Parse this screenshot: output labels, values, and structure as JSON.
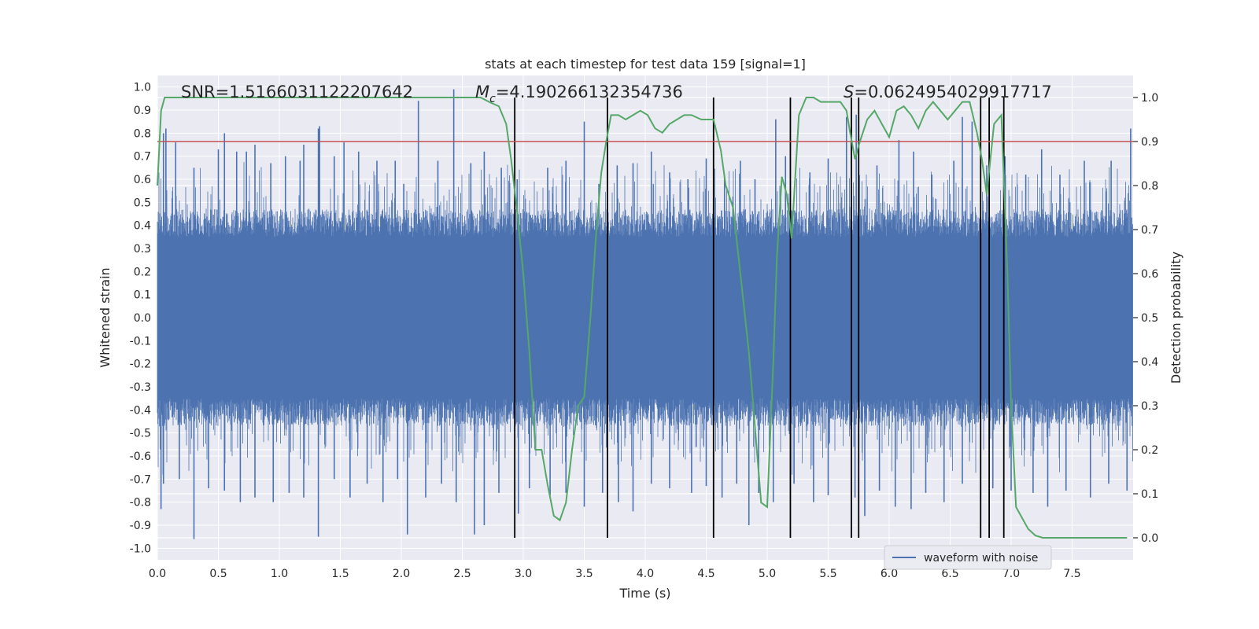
{
  "chart_data": {
    "type": "line",
    "title": "stats at each timestep for test data 159 [signal=1]",
    "xlabel": "Time (s)",
    "ylabel_left": "Whitened strain",
    "ylabel_right": "Detection probability",
    "xlim": [
      0.0,
      8.0
    ],
    "ylim_left": [
      -1.05,
      1.05
    ],
    "ylim_right": [
      -0.05,
      1.05
    ],
    "x_ticks": [
      "0.0",
      "0.5",
      "1.0",
      "1.5",
      "2.0",
      "2.5",
      "3.0",
      "3.5",
      "4.0",
      "4.5",
      "5.0",
      "5.5",
      "6.0",
      "6.5",
      "7.0",
      "7.5"
    ],
    "y_left_ticks": [
      "1.0",
      "0.9",
      "0.8",
      "0.7",
      "0.6",
      "0.5",
      "0.4",
      "0.3",
      "0.2",
      "0.1",
      "0.0",
      "-0.1",
      "-0.2",
      "-0.3",
      "-0.4",
      "-0.5",
      "-0.6",
      "-0.7",
      "-0.8",
      "-0.9",
      "-1.0"
    ],
    "y_right_ticks": [
      "1.0",
      "0.9",
      "0.8",
      "0.7",
      "0.6",
      "0.5",
      "0.4",
      "0.3",
      "0.2",
      "0.1",
      "0.0"
    ],
    "grid": true,
    "annotations": {
      "snr": "SNR=1.5166031122207642",
      "mc_symbol": "M",
      "mc_sub": "c",
      "mc_value": "=4.190266132354736",
      "s_symbol": "S",
      "s_value": "=0.0624954029917717"
    },
    "legend": {
      "label": "waveform with noise",
      "placement": "bottom-right"
    },
    "threshold": {
      "value": 0.9,
      "axis": "right",
      "color": "#c44e52"
    },
    "vertical_lines": {
      "x": [
        2.93,
        3.69,
        4.56,
        5.19,
        5.69,
        5.75,
        6.75,
        6.82,
        6.94
      ],
      "ymin": 0.0,
      "ymax": 1.0,
      "axis": "right",
      "color": "#000000"
    },
    "series": [
      {
        "name": "waveform with noise",
        "axis": "left",
        "color": "#4c72b0",
        "kind": "dense-noise",
        "core_band": [
          -0.35,
          0.35
        ],
        "peaks_positive": [
          [
            0.05,
            0.8
          ],
          [
            0.07,
            0.82
          ],
          [
            0.15,
            0.76
          ],
          [
            0.3,
            0.65
          ],
          [
            0.5,
            0.73
          ],
          [
            0.55,
            0.8
          ],
          [
            0.65,
            0.72
          ],
          [
            0.73,
            0.72
          ],
          [
            0.8,
            0.75
          ],
          [
            0.93,
            0.67
          ],
          [
            1.05,
            0.7
          ],
          [
            1.17,
            0.68
          ],
          [
            1.2,
            0.75
          ],
          [
            1.32,
            0.82
          ],
          [
            1.33,
            0.83
          ],
          [
            1.45,
            0.7
          ],
          [
            1.53,
            0.76
          ],
          [
            1.65,
            0.72
          ],
          [
            1.8,
            0.68
          ],
          [
            1.95,
            0.68
          ],
          [
            2.02,
            0.58
          ],
          [
            2.14,
            0.94
          ],
          [
            2.3,
            0.68
          ],
          [
            2.43,
            0.99
          ],
          [
            2.57,
            0.67
          ],
          [
            2.68,
            0.72
          ],
          [
            2.82,
            0.65
          ],
          [
            2.95,
            0.6
          ],
          [
            3.2,
            0.65
          ],
          [
            3.35,
            0.68
          ],
          [
            3.5,
            0.85
          ],
          [
            3.62,
            0.58
          ],
          [
            3.77,
            0.66
          ],
          [
            3.9,
            0.67
          ],
          [
            4.05,
            0.72
          ],
          [
            4.2,
            0.63
          ],
          [
            4.35,
            0.6
          ],
          [
            4.5,
            0.69
          ],
          [
            4.65,
            0.62
          ],
          [
            4.78,
            0.68
          ],
          [
            4.9,
            0.6
          ],
          [
            5.07,
            0.86
          ],
          [
            5.15,
            0.7
          ],
          [
            5.35,
            0.63
          ],
          [
            5.5,
            0.69
          ],
          [
            5.65,
            0.87
          ],
          [
            5.73,
            0.88
          ],
          [
            5.9,
            0.66
          ],
          [
            6.08,
            0.77
          ],
          [
            6.2,
            0.72
          ],
          [
            6.35,
            0.62
          ],
          [
            6.53,
            0.68
          ],
          [
            6.6,
            0.87
          ],
          [
            6.68,
            0.85
          ],
          [
            6.8,
            0.66
          ],
          [
            6.95,
            0.7
          ],
          [
            7.12,
            0.62
          ],
          [
            7.25,
            0.73
          ],
          [
            7.4,
            0.62
          ],
          [
            7.6,
            0.68
          ],
          [
            7.82,
            0.68
          ],
          [
            7.98,
            0.82
          ]
        ],
        "peaks_negative": [
          [
            0.03,
            -0.83
          ],
          [
            0.05,
            -0.72
          ],
          [
            0.18,
            -0.7
          ],
          [
            0.3,
            -0.96
          ],
          [
            0.42,
            -0.74
          ],
          [
            0.55,
            -0.75
          ],
          [
            0.68,
            -0.8
          ],
          [
            0.8,
            -0.78
          ],
          [
            0.95,
            -0.8
          ],
          [
            1.08,
            -0.76
          ],
          [
            1.2,
            -0.78
          ],
          [
            1.32,
            -0.95
          ],
          [
            1.45,
            -0.7
          ],
          [
            1.58,
            -0.78
          ],
          [
            1.72,
            -0.72
          ],
          [
            1.85,
            -0.8
          ],
          [
            1.97,
            -0.7
          ],
          [
            2.05,
            -0.94
          ],
          [
            2.2,
            -0.78
          ],
          [
            2.33,
            -0.72
          ],
          [
            2.45,
            -0.8
          ],
          [
            2.6,
            -0.94
          ],
          [
            2.68,
            -0.9
          ],
          [
            2.8,
            -0.76
          ],
          [
            2.96,
            -0.85
          ],
          [
            3.05,
            -0.74
          ],
          [
            3.22,
            -0.77
          ],
          [
            3.35,
            -0.76
          ],
          [
            3.5,
            -0.82
          ],
          [
            3.65,
            -0.76
          ],
          [
            3.78,
            -0.8
          ],
          [
            3.9,
            -0.84
          ],
          [
            4.05,
            -0.72
          ],
          [
            4.2,
            -0.74
          ],
          [
            4.38,
            -0.76
          ],
          [
            4.5,
            -0.73
          ],
          [
            4.63,
            -0.78
          ],
          [
            4.75,
            -0.72
          ],
          [
            4.85,
            -0.9
          ],
          [
            4.93,
            -0.76
          ],
          [
            5.05,
            -0.8
          ],
          [
            5.22,
            -0.72
          ],
          [
            5.38,
            -0.8
          ],
          [
            5.5,
            -0.77
          ],
          [
            5.72,
            -0.78
          ],
          [
            5.8,
            -0.86
          ],
          [
            5.92,
            -0.75
          ],
          [
            6.05,
            -0.82
          ],
          [
            6.18,
            -0.83
          ],
          [
            6.3,
            -0.76
          ],
          [
            6.45,
            -0.8
          ],
          [
            6.6,
            -0.72
          ],
          [
            6.75,
            -0.8
          ],
          [
            6.85,
            -0.74
          ],
          [
            7.0,
            -0.75
          ],
          [
            7.18,
            -0.76
          ],
          [
            7.3,
            -0.82
          ],
          [
            7.45,
            -0.75
          ],
          [
            7.65,
            -0.78
          ],
          [
            7.8,
            -0.72
          ],
          [
            7.95,
            -0.75
          ]
        ]
      },
      {
        "name": "detection probability",
        "axis": "right",
        "color": "#55a868",
        "x": [
          0.0,
          0.03,
          0.06,
          0.12,
          0.3,
          0.6,
          1.0,
          1.5,
          2.0,
          2.5,
          2.65,
          2.72,
          2.8,
          2.86,
          2.9,
          2.95,
          3.0,
          3.05,
          3.1,
          3.15,
          3.2,
          3.25,
          3.3,
          3.35,
          3.4,
          3.45,
          3.5,
          3.55,
          3.6,
          3.64,
          3.68,
          3.72,
          3.78,
          3.84,
          3.9,
          3.96,
          4.02,
          4.08,
          4.14,
          4.2,
          4.26,
          4.32,
          4.38,
          4.46,
          4.56,
          4.62,
          4.66,
          4.72,
          4.78,
          4.85,
          4.9,
          4.95,
          5.0,
          5.05,
          5.08,
          5.12,
          5.16,
          5.2,
          5.26,
          5.32,
          5.38,
          5.44,
          5.52,
          5.6,
          5.65,
          5.68,
          5.72,
          5.76,
          5.82,
          5.88,
          5.94,
          6.0,
          6.06,
          6.12,
          6.18,
          6.24,
          6.3,
          6.36,
          6.42,
          6.48,
          6.54,
          6.6,
          6.66,
          6.72,
          6.76,
          6.8,
          6.86,
          6.92,
          6.97,
          7.0,
          7.04,
          7.08,
          7.14,
          7.2,
          7.26,
          7.35,
          7.5,
          7.7,
          7.95
        ],
        "y": [
          0.8,
          0.97,
          1.0,
          1.0,
          1.0,
          1.0,
          1.0,
          1.0,
          1.0,
          1.0,
          1.0,
          0.99,
          0.98,
          0.94,
          0.86,
          0.74,
          0.6,
          0.42,
          0.2,
          0.2,
          0.12,
          0.05,
          0.04,
          0.08,
          0.2,
          0.3,
          0.32,
          0.5,
          0.7,
          0.83,
          0.9,
          0.96,
          0.96,
          0.95,
          0.96,
          0.97,
          0.96,
          0.93,
          0.92,
          0.94,
          0.95,
          0.96,
          0.96,
          0.95,
          0.95,
          0.88,
          0.8,
          0.75,
          0.6,
          0.42,
          0.25,
          0.08,
          0.07,
          0.4,
          0.64,
          0.82,
          0.78,
          0.68,
          0.96,
          1.0,
          1.0,
          0.99,
          0.99,
          0.99,
          0.97,
          0.92,
          0.86,
          0.9,
          0.95,
          0.97,
          0.94,
          0.91,
          0.97,
          0.98,
          0.96,
          0.93,
          0.97,
          0.99,
          0.97,
          0.95,
          0.97,
          0.99,
          0.99,
          0.92,
          0.86,
          0.78,
          0.94,
          0.96,
          0.6,
          0.3,
          0.07,
          0.05,
          0.02,
          0.005,
          0.0,
          0.0,
          0.0,
          0.0,
          0.0
        ]
      }
    ]
  }
}
